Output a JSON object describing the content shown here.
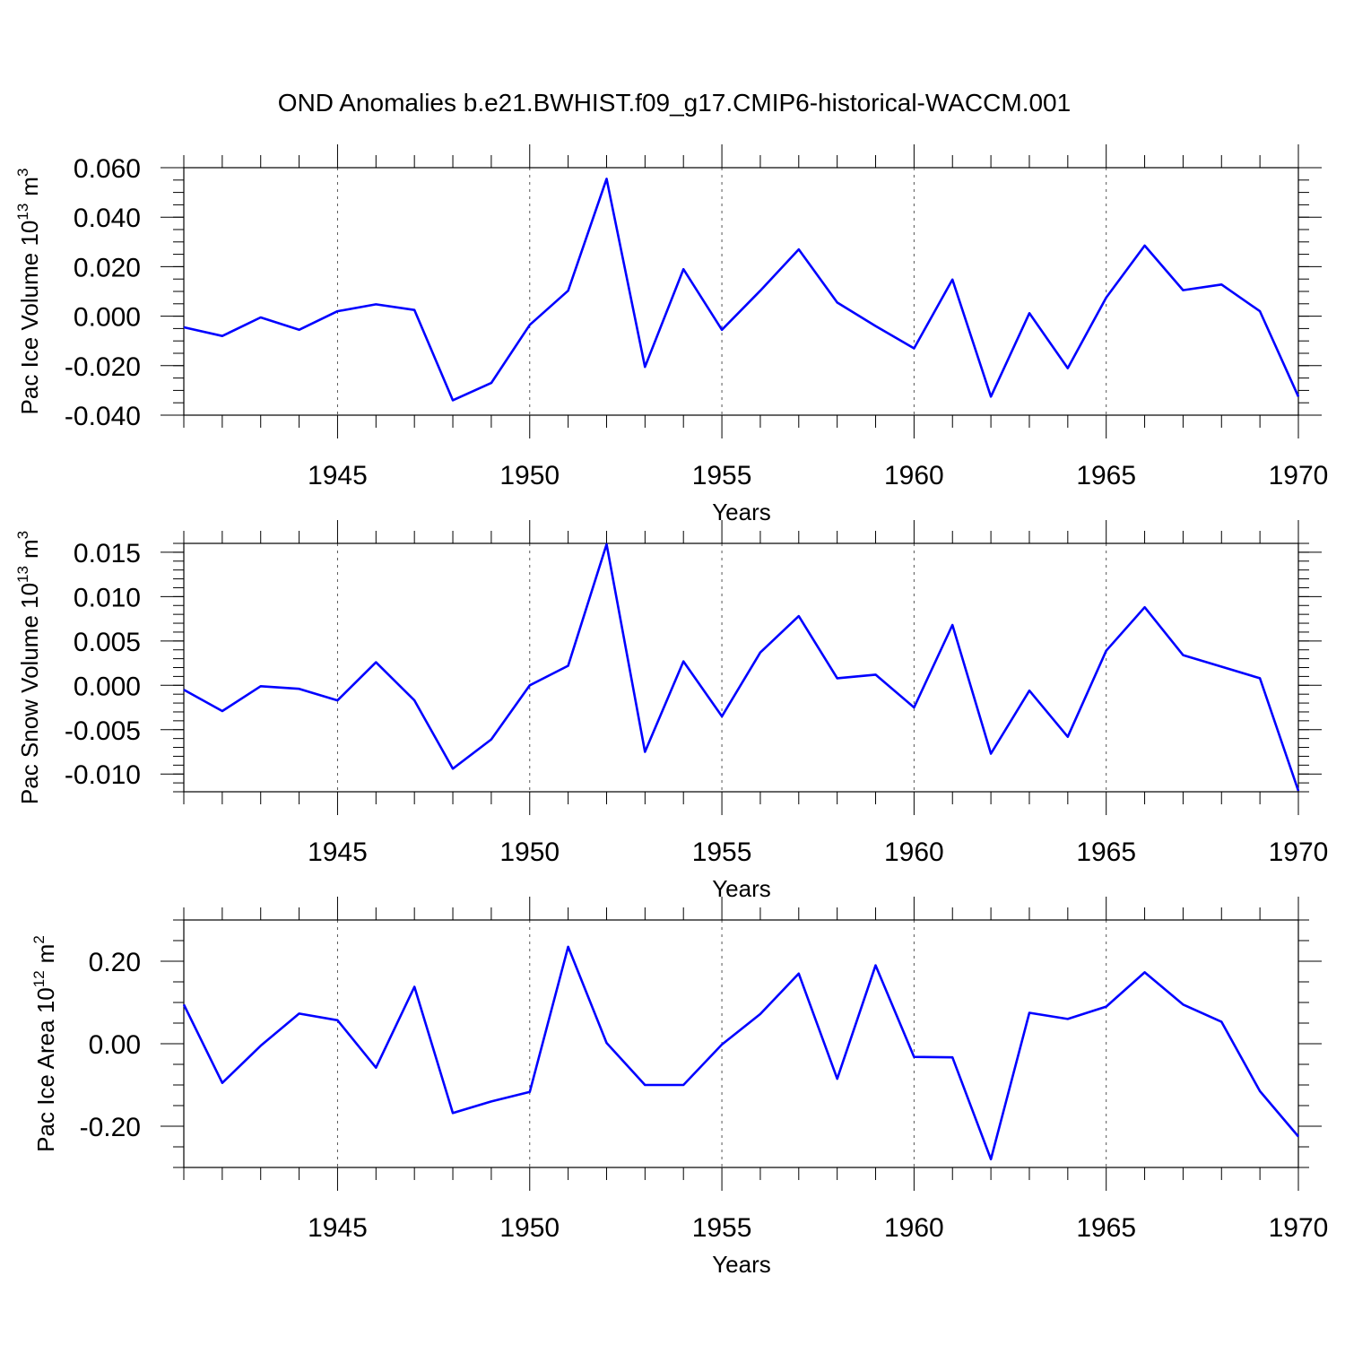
{
  "title": "OND Anomalies b.e21.BWHIST.f09_g17.CMIP6-historical-WACCM.001",
  "colors": {
    "series": "#0000ff",
    "axis": "#000000",
    "grid": "#555555"
  },
  "chart_data": [
    {
      "type": "line",
      "ylabel": "Pac Ice Volume 10",
      "ylabel_exp": "13",
      "ylabel_unit": "m",
      "ylabel_unit_exp": "3",
      "xlabel": "Years",
      "xlim": [
        1941,
        1970
      ],
      "ylim": [
        -0.04,
        0.06
      ],
      "yticks": [
        -0.04,
        -0.02,
        0.0,
        0.02,
        0.04,
        0.06
      ],
      "ytick_labels": [
        "-0.040",
        "-0.020",
        "0.000",
        "0.020",
        "0.040",
        "0.060"
      ],
      "yminor": 0.005,
      "xticks": [
        1945,
        1950,
        1955,
        1960,
        1965,
        1970
      ],
      "xtick_labels": [
        "1945",
        "1950",
        "1955",
        "1960",
        "1965",
        "1970"
      ],
      "x": [
        1941,
        1942,
        1943,
        1944,
        1945,
        1946,
        1947,
        1948,
        1949,
        1950,
        1951,
        1952,
        1953,
        1954,
        1955,
        1956,
        1957,
        1958,
        1959,
        1960,
        1961,
        1962,
        1963,
        1964,
        1965,
        1966,
        1967,
        1968,
        1969,
        1970
      ],
      "values": [
        -0.0045,
        -0.008,
        -0.0005,
        -0.0055,
        0.002,
        0.0048,
        0.0025,
        -0.034,
        -0.027,
        -0.0035,
        0.0103,
        0.0555,
        -0.0205,
        0.019,
        -0.0055,
        0.0103,
        0.027,
        0.0055,
        -0.004,
        -0.013,
        0.0148,
        -0.0325,
        0.0012,
        -0.021,
        0.0075,
        0.0285,
        0.0105,
        0.0128,
        0.002,
        -0.0325
      ]
    },
    {
      "type": "line",
      "ylabel": "Pac Snow Volume 10",
      "ylabel_exp": "13",
      "ylabel_unit": "m",
      "ylabel_unit_exp": "3",
      "xlabel": "Years",
      "xlim": [
        1941,
        1970
      ],
      "ylim": [
        -0.012,
        0.016
      ],
      "yticks": [
        -0.01,
        -0.005,
        0.0,
        0.005,
        0.01,
        0.015
      ],
      "ytick_labels": [
        "-0.010",
        "-0.005",
        "0.000",
        "0.005",
        "0.010",
        "0.015"
      ],
      "yminor": 0.001,
      "xticks": [
        1945,
        1950,
        1955,
        1960,
        1965,
        1970
      ],
      "xtick_labels": [
        "1945",
        "1950",
        "1955",
        "1960",
        "1965",
        "1970"
      ],
      "x": [
        1941,
        1942,
        1943,
        1944,
        1945,
        1946,
        1947,
        1948,
        1949,
        1950,
        1951,
        1952,
        1953,
        1954,
        1955,
        1956,
        1957,
        1958,
        1959,
        1960,
        1961,
        1962,
        1963,
        1964,
        1965,
        1966,
        1967,
        1968,
        1969,
        1970
      ],
      "values": [
        -0.0005,
        -0.0029,
        -0.0001,
        -0.0004,
        -0.0017,
        0.0026,
        -0.0017,
        -0.0094,
        -0.0061,
        0.0,
        0.0022,
        0.0159,
        -0.0075,
        0.0027,
        -0.0035,
        0.0037,
        0.0078,
        0.0008,
        0.0012,
        -0.0025,
        0.0068,
        -0.0077,
        -0.0006,
        -0.0058,
        0.0039,
        0.0088,
        0.0034,
        0.0021,
        0.0008,
        -0.0119
      ]
    },
    {
      "type": "line",
      "ylabel": "Pac Ice Area 10",
      "ylabel_exp": "12",
      "ylabel_unit": "m",
      "ylabel_unit_exp": "2",
      "xlabel": "Years",
      "xlim": [
        1941,
        1970
      ],
      "ylim": [
        -0.3,
        0.3
      ],
      "yticks": [
        -0.2,
        0.0,
        0.2
      ],
      "ytick_labels": [
        "-0.20",
        "0.00",
        "0.20"
      ],
      "yminor": 0.05,
      "xticks": [
        1945,
        1950,
        1955,
        1960,
        1965,
        1970
      ],
      "xtick_labels": [
        "1945",
        "1950",
        "1955",
        "1960",
        "1965",
        "1970"
      ],
      "x": [
        1941,
        1942,
        1943,
        1944,
        1945,
        1946,
        1947,
        1948,
        1949,
        1950,
        1951,
        1952,
        1953,
        1954,
        1955,
        1956,
        1957,
        1958,
        1959,
        1960,
        1961,
        1962,
        1963,
        1964,
        1965,
        1966,
        1967,
        1968,
        1969,
        1970
      ],
      "values": [
        0.095,
        -0.095,
        -0.005,
        0.073,
        0.057,
        -0.058,
        0.138,
        -0.168,
        -0.14,
        -0.117,
        0.235,
        0.002,
        -0.1,
        -0.1,
        -0.002,
        0.072,
        0.17,
        -0.085,
        0.19,
        -0.032,
        -0.033,
        -0.28,
        0.075,
        0.06,
        0.09,
        0.173,
        0.095,
        0.053,
        -0.115,
        -0.225
      ]
    }
  ]
}
